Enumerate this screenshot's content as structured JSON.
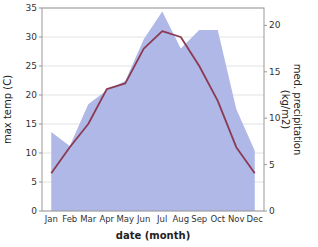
{
  "chart_data": {
    "type": "line",
    "categories": [
      "Jan",
      "Feb",
      "Mar",
      "Apr",
      "May",
      "Jun",
      "Jul",
      "Aug",
      "Sep",
      "Oct",
      "Nov",
      "Dec"
    ],
    "series": [
      {
        "type": "area",
        "axis": "y2",
        "color": "#b0b8e8",
        "values": [
          8.5,
          7.0,
          11.5,
          13,
          14,
          18.5,
          21.5,
          17.5,
          19.5,
          19.5,
          11,
          6.5
        ]
      },
      {
        "type": "line",
        "color": "#8B3A52",
        "values": [
          6.5,
          11,
          15,
          21,
          22,
          28,
          31,
          30,
          25,
          19,
          11,
          6.5
        ]
      }
    ],
    "xlabel": "date (month)",
    "ylabel": "max temp (C)",
    "y2label": "med. precipitation\n(kg/m2)",
    "ylim": [
      0,
      35
    ],
    "yticks": [
      0,
      5,
      10,
      15,
      20,
      25,
      30,
      35
    ],
    "y2lim": [
      0,
      21.875
    ],
    "y2ticks": [
      0,
      5,
      10,
      15,
      20
    ],
    "grid": true
  }
}
